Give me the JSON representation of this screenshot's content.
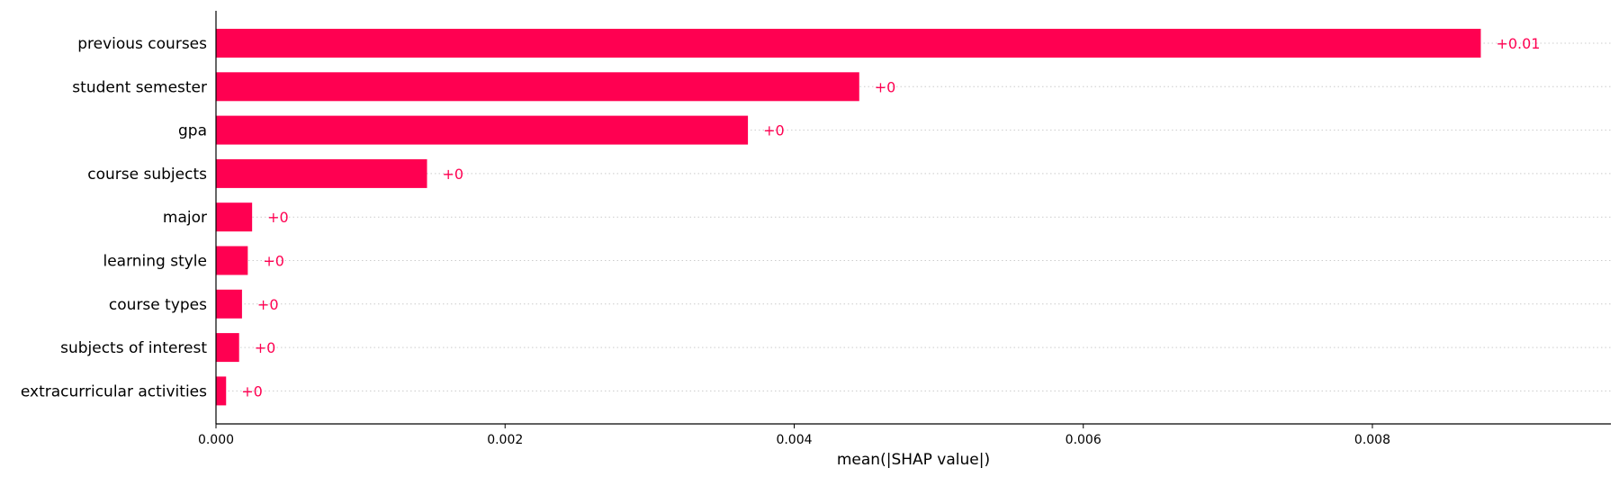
{
  "chart_data": {
    "type": "bar",
    "orientation": "horizontal",
    "categories": [
      "previous courses",
      "student semester",
      "gpa",
      "course subjects",
      "major",
      "learning style",
      "course types",
      "subjects of interest",
      "extracurricular activities"
    ],
    "values": [
      0.00875,
      0.00445,
      0.00368,
      0.00146,
      0.00025,
      0.00022,
      0.00018,
      0.00016,
      7e-05
    ],
    "value_labels": [
      "+0.01",
      "+0",
      "+0",
      "+0",
      "+0",
      "+0",
      "+0",
      "+0",
      "+0"
    ],
    "xlabel": "mean(|SHAP value|)",
    "xlim": [
      0,
      0.00965
    ],
    "xticks": [
      0,
      0.002,
      0.004,
      0.006,
      0.008
    ],
    "xtick_labels": [
      "0.000",
      "0.002",
      "0.004",
      "0.006",
      "0.008"
    ],
    "bar_color": "#ff0051",
    "label_color": "#ff0051",
    "grid": "dotted horizontal guide lines per row",
    "legend": "none"
  }
}
